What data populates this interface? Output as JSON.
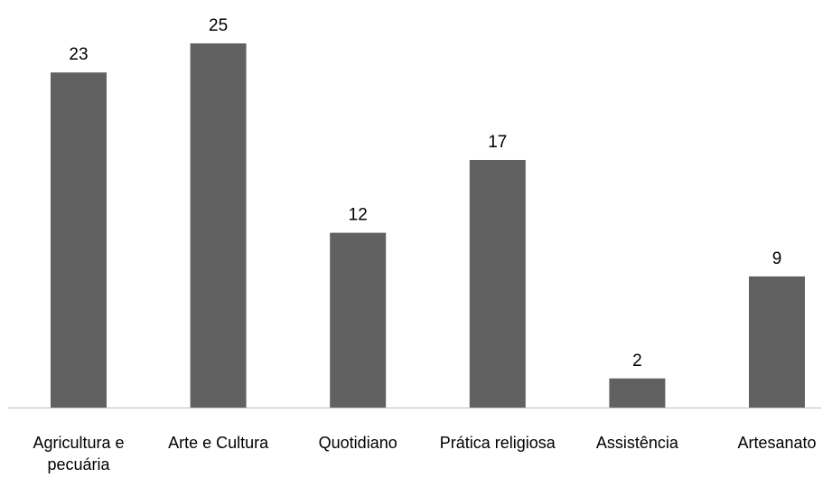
{
  "chart_data": {
    "type": "bar",
    "categories": [
      "Agricultura e pecuária",
      "Arte e Cultura",
      "Quotidiano",
      "Prática religiosa",
      "Assistência",
      "Artesanato"
    ],
    "category_lines": [
      [
        "Agricultura e",
        "pecuária"
      ],
      [
        "Arte e Cultura"
      ],
      [
        "Quotidiano"
      ],
      [
        "Prática religiosa"
      ],
      [
        "Assistência"
      ],
      [
        "Artesanato"
      ]
    ],
    "values": [
      23,
      25,
      12,
      17,
      2,
      9
    ],
    "value_labels": [
      "23",
      "25",
      "12",
      "17",
      "2",
      "9"
    ],
    "ylim": [
      0,
      25
    ],
    "bar_color": "#616161",
    "axis_color": "#bfbfbf",
    "grid": false,
    "legend": "none"
  }
}
